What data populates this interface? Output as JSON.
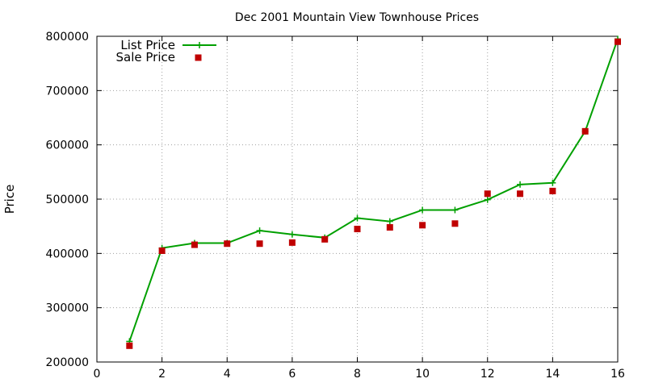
{
  "chart_data": {
    "type": "line",
    "title": "Dec 2001 Mountain View Townhouse Prices",
    "xlabel": "",
    "ylabel": "Price",
    "xlim": [
      0,
      16
    ],
    "ylim": [
      200000,
      800000
    ],
    "xticks": [
      0,
      2,
      4,
      6,
      8,
      10,
      12,
      14,
      16
    ],
    "yticks": [
      200000,
      300000,
      400000,
      500000,
      600000,
      700000,
      800000
    ],
    "grid": true,
    "legend_position": "top-left",
    "series": [
      {
        "name": "List Price",
        "style": "line-with-plus-markers",
        "color": "#00a000",
        "x": [
          1,
          2,
          3,
          4,
          5,
          6,
          7,
          8,
          9,
          10,
          11,
          12,
          13,
          14,
          15,
          16
        ],
        "y": [
          238000,
          410000,
          419000,
          419000,
          442000,
          435000,
          429000,
          465000,
          459000,
          480000,
          480000,
          499000,
          527000,
          530000,
          625000,
          795000
        ]
      },
      {
        "name": "Sale Price",
        "style": "square-points",
        "color": "#c00000",
        "x": [
          1,
          2,
          3,
          4,
          5,
          6,
          7,
          8,
          9,
          10,
          11,
          12,
          13,
          14,
          15,
          16
        ],
        "y": [
          230000,
          405000,
          416000,
          418000,
          418000,
          420000,
          426000,
          445000,
          448000,
          452000,
          455000,
          510000,
          510000,
          515000,
          625000,
          790000
        ]
      }
    ]
  }
}
